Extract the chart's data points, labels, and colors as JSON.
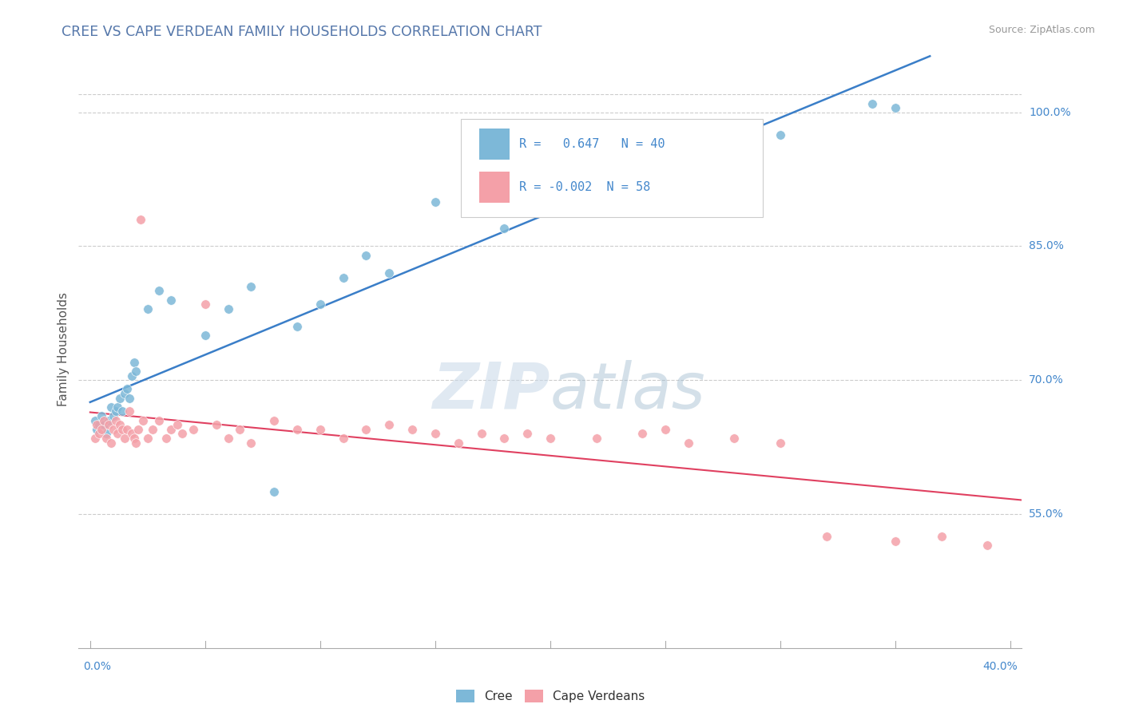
{
  "title": "CREE VS CAPE VERDEAN FAMILY HOUSEHOLDS CORRELATION CHART",
  "source": "Source: ZipAtlas.com",
  "ylabel": "Family Households",
  "cree_R": 0.647,
  "cree_N": 40,
  "cape_R": -0.002,
  "cape_N": 58,
  "cree_color": "#7db8d8",
  "cape_color": "#f4a0a8",
  "trend_cree_color": "#3a7ec8",
  "trend_cape_color": "#e04060",
  "title_color": "#5577aa",
  "axis_label_color": "#4488cc",
  "ylabel_color": "#555555",
  "watermark_color": "#c8d8e8",
  "background_color": "#ffffff",
  "grid_color": "#cccccc",
  "xlim_min": 0.0,
  "xlim_max": 40.0,
  "ylim_min": 40.0,
  "ylim_max": 107.0,
  "ytick_vals": [
    55.0,
    70.0,
    85.0,
    100.0
  ],
  "ytick_labels": [
    "55.0%",
    "70.0%",
    "85.0%",
    "100.0%"
  ],
  "top_dash_y": 102.0,
  "cree_x": [
    0.2,
    0.3,
    0.4,
    0.5,
    0.6,
    0.7,
    0.8,
    0.9,
    1.0,
    1.1,
    1.2,
    1.3,
    1.4,
    1.5,
    1.6,
    1.7,
    1.8,
    1.9,
    2.0,
    2.5,
    3.0,
    3.5,
    5.0,
    6.0,
    7.0,
    8.0,
    9.0,
    10.0,
    11.0,
    12.0,
    13.0,
    15.0,
    17.0,
    18.0,
    20.0,
    22.0,
    25.0,
    30.0,
    34.0,
    35.0
  ],
  "cree_y": [
    65.5,
    64.5,
    65.0,
    66.0,
    65.0,
    64.0,
    65.5,
    67.0,
    66.0,
    66.5,
    67.0,
    68.0,
    66.5,
    68.5,
    69.0,
    68.0,
    70.5,
    72.0,
    71.0,
    78.0,
    80.0,
    79.0,
    75.0,
    78.0,
    80.5,
    57.5,
    76.0,
    78.5,
    81.5,
    84.0,
    82.0,
    90.0,
    91.5,
    87.0,
    90.5,
    91.0,
    94.0,
    97.5,
    101.0,
    100.5
  ],
  "cape_x": [
    0.2,
    0.3,
    0.4,
    0.5,
    0.6,
    0.7,
    0.8,
    0.9,
    1.0,
    1.1,
    1.2,
    1.3,
    1.4,
    1.5,
    1.6,
    1.7,
    1.8,
    1.9,
    2.0,
    2.1,
    2.2,
    2.3,
    2.5,
    2.7,
    3.0,
    3.3,
    3.5,
    3.8,
    4.0,
    4.5,
    5.0,
    5.5,
    6.0,
    6.5,
    7.0,
    8.0,
    9.0,
    10.0,
    11.0,
    12.0,
    13.0,
    14.0,
    15.0,
    16.0,
    17.0,
    18.0,
    19.0,
    20.0,
    22.0,
    24.0,
    25.0,
    26.0,
    28.0,
    30.0,
    32.0,
    35.0,
    37.0,
    39.0
  ],
  "cape_y": [
    63.5,
    65.0,
    64.0,
    64.5,
    65.5,
    63.5,
    65.0,
    63.0,
    64.5,
    65.5,
    64.0,
    65.0,
    64.5,
    63.5,
    64.5,
    66.5,
    64.0,
    63.5,
    63.0,
    64.5,
    88.0,
    65.5,
    63.5,
    64.5,
    65.5,
    63.5,
    64.5,
    65.0,
    64.0,
    64.5,
    78.5,
    65.0,
    63.5,
    64.5,
    63.0,
    65.5,
    64.5,
    64.5,
    63.5,
    64.5,
    65.0,
    64.5,
    64.0,
    63.0,
    64.0,
    63.5,
    64.0,
    63.5,
    63.5,
    64.0,
    64.5,
    63.0,
    63.5,
    63.0,
    52.5,
    52.0,
    52.5,
    51.5
  ]
}
